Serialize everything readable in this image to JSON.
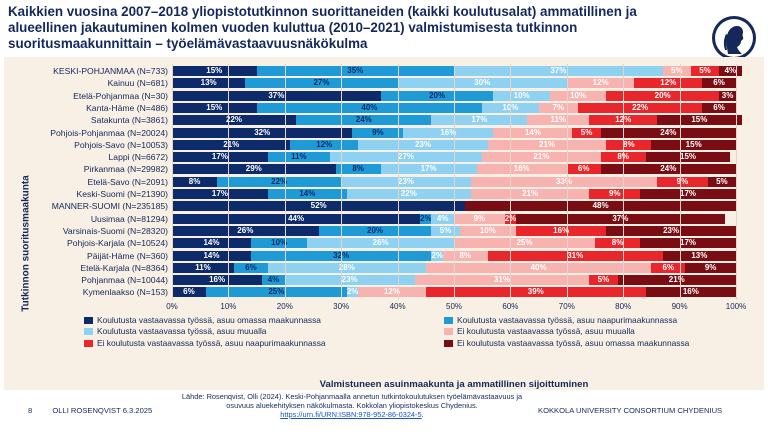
{
  "title": "Kaikkien vuosina 2007–2018 yliopistotutkinnon suorittaneiden (kaikki koulutusalat) ammatillinen ja alueellinen jakautuminen kolmen vuoden kuluttua (2010–2021) valmistumisesta tutkinnon suoritusmaakunnittain – työelämävastaavuusnäkökulma",
  "footer": {
    "page_number": "8",
    "author_date": "OLLI ROSENQVIST 6.3.2025",
    "source_line1": "Lähde: Rosenqvist, Olli (2024). Keski-Pohjanmaalla annetun tutkintokoulutuksen työelämävastaavuus ja",
    "source_line2": "osuvuus aluekehityksen näkökulmasta. Kokkolan yliopistokeskus Chydenius.",
    "source_link": "https://urn.fi/URN:ISBN:978-952-86-0324-5",
    "source_end": ".",
    "organization": "KOKKOLA UNIVERSITY CONSORTIUM CHYDENIUS"
  },
  "colors": {
    "title": "#14285a",
    "panel_background": "#f8efe5"
  },
  "chart_data": {
    "type": "bar",
    "orientation": "horizontal-stacked-100",
    "ylabel": "Tutkinnon suoritusmaakunta",
    "xlabel": "Valmistuneen asuinmaakunta ja ammatillinen sijoittuminen",
    "x_ticks": [
      "0%",
      "10%",
      "20%",
      "30%",
      "40%",
      "50%",
      "60%",
      "70%",
      "80%",
      "90%",
      "100%"
    ],
    "xlim": [
      0,
      100
    ],
    "legend_position": "bottom",
    "categories": [
      "KESKI-POHJANMAA (N=733)",
      "Kainuu (N=681)",
      "Etelä-Pohjanmaa (N=30)",
      "Kanta-Häme (N=486)",
      "Satakunta (N=3861)",
      "Pohjois-Pohjanmaa (N=20024)",
      "Pohjois-Savo (N=10053)",
      "Lappi (N=6672)",
      "Pirkanmaa (N=29982)",
      "Etelä-Savo (N=2091)",
      "Keski-Suomi (N=21390)",
      "MANNER-SUOMI (N=235185)",
      "Uusimaa (N=81294)",
      "Varsinais-Suomi (N=28320)",
      "Pohjois-Karjala (N=10524)",
      "Päijät-Häme (N=360)",
      "Etelä-Karjala (N=8364)",
      "Pohjanmaa (N=10044)",
      "Kymenlaakso (N=153)"
    ],
    "series": [
      {
        "name": "Koulutusta vastaavassa työssä, asuu omassa maakunnassa",
        "color": "#0d2a6b",
        "label_color": "#ffffff",
        "values": [
          15,
          13,
          37,
          15,
          22,
          32,
          21,
          17,
          29,
          8,
          17,
          52,
          44,
          26,
          14,
          14,
          11,
          16,
          6
        ]
      },
      {
        "name": "Koulutusta vastaavassa työssä, asuu naapurimaakunnassa",
        "color": "#1e9ad6",
        "label_color": "#0d2a6b",
        "values": [
          35,
          27,
          20,
          40,
          24,
          9,
          12,
          11,
          8,
          22,
          14,
          0,
          2,
          20,
          10,
          32,
          6,
          4,
          25
        ]
      },
      {
        "name": "Koulutusta vastaavassa työssä, asuu muualla",
        "color": "#8ed1f0",
        "label_color": "#ffffff",
        "values": [
          37,
          30,
          10,
          10,
          17,
          16,
          23,
          27,
          17,
          23,
          22,
          0,
          4,
          5,
          26,
          2,
          28,
          23,
          2
        ]
      },
      {
        "name": "Ei koulutusta vastaavassa työssä, asuu muualla",
        "color": "#f6b3b0",
        "label_color": "#ffffff",
        "values": [
          5,
          12,
          10,
          7,
          11,
          14,
          21,
          21,
          16,
          33,
          21,
          0,
          9,
          10,
          25,
          8,
          40,
          31,
          12
        ]
      },
      {
        "name": "Ei koulutusta vastaavassa työssä, asuu naapurimaakunnassa",
        "color": "#e8262b",
        "label_color": "#ffffff",
        "values": [
          5,
          12,
          20,
          22,
          12,
          5,
          8,
          8,
          6,
          9,
          9,
          0,
          2,
          16,
          8,
          31,
          6,
          5,
          39
        ]
      },
      {
        "name": "Ei koulutusta vastaavassa työssä, asuu omassa maakunnassa",
        "color": "#7a0d14",
        "label_color": "#ffffff",
        "values": [
          4,
          6,
          3,
          6,
          15,
          24,
          15,
          15,
          24,
          5,
          17,
          48,
          37,
          23,
          17,
          13,
          9,
          21,
          16
        ]
      }
    ],
    "data_labels": [
      [
        "15%",
        "35%",
        "37%",
        "5%",
        "5%",
        "4%"
      ],
      [
        "13%",
        "27%",
        "30%",
        "12%",
        "12%",
        "6%"
      ],
      [
        "37%",
        "20%",
        "10%",
        "10%",
        "20%",
        "3%"
      ],
      [
        "15%",
        "40%",
        "10%",
        "7%",
        "22%",
        "6%"
      ],
      [
        "22%",
        "24%",
        "17%",
        "11%",
        "12%",
        "15%"
      ],
      [
        "32%",
        "9%",
        "16%",
        "14%",
        "5%",
        "24%"
      ],
      [
        "21%",
        "12%",
        "23%",
        "21%",
        "8%",
        "15%"
      ],
      [
        "17%",
        "11%",
        "27%",
        "21%",
        "8%",
        "15%"
      ],
      [
        "29%",
        "8%",
        "17%",
        "16%",
        "6%",
        "24%"
      ],
      [
        "8%",
        "22%",
        "23%",
        "33%",
        "9%",
        "5%"
      ],
      [
        "17%",
        "14%",
        "22%",
        "21%",
        "9%",
        "17%"
      ],
      [
        "52%",
        "",
        "",
        "",
        "",
        "48%"
      ],
      [
        "44%",
        "2%",
        "4%",
        "9%",
        "2%",
        "37%"
      ],
      [
        "26%",
        "20%",
        "5%",
        "10%",
        "16%",
        "23%"
      ],
      [
        "14%",
        "10%",
        "26%",
        "25%",
        "8%",
        "17%"
      ],
      [
        "14%",
        "32%",
        "2%",
        "8%",
        "31%",
        "13%"
      ],
      [
        "11%",
        "6%",
        "28%",
        "40%",
        "6%",
        "9%"
      ],
      [
        "16%",
        "4%",
        "23%",
        "31%",
        "5%",
        "21%"
      ],
      [
        "6%",
        "25%",
        "2%",
        "12%",
        "39%",
        "16%"
      ]
    ]
  }
}
